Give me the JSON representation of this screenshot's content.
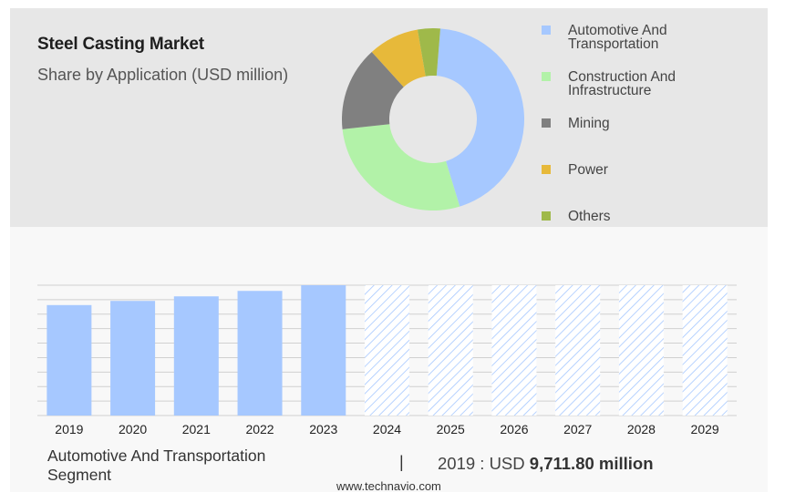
{
  "chart_data": [
    {
      "type": "pie",
      "title": "Steel Casting Market",
      "subtitle": "Share by Application (USD million)",
      "donut": true,
      "slices": [
        {
          "label": "Automotive And\nTransportation",
          "value": 44,
          "color": "#a6c8ff"
        },
        {
          "label": "Construction And\nInfrastructure",
          "value": 28,
          "color": "#b2f2a8"
        },
        {
          "label": "Mining",
          "value": 15,
          "color": "#808080"
        },
        {
          "label": "Power",
          "value": 9,
          "color": "#e7b93a"
        },
        {
          "label": "Others",
          "value": 4,
          "color": "#9fb94a"
        }
      ],
      "legend_position": "right"
    },
    {
      "type": "bar",
      "categories": [
        "2019",
        "2020",
        "2021",
        "2022",
        "2023",
        "2024",
        "2025",
        "2026",
        "2027",
        "2028",
        "2029"
      ],
      "values": [
        9711.8,
        10080,
        10480,
        10960,
        11460,
        null,
        null,
        null,
        null,
        null,
        null
      ],
      "forecast": [
        false,
        false,
        false,
        false,
        false,
        true,
        true,
        true,
        true,
        true,
        true
      ],
      "ylim": [
        0,
        11460
      ],
      "grid": true,
      "bar_color": "#a6c8ff",
      "forecast_pattern": "hatched"
    }
  ],
  "footer": {
    "segment_label": "Automotive And Transportation\nSegment",
    "divider": "|",
    "value_prefix": "2019 : USD ",
    "value_bold": "9,711.80 million",
    "source": "www.technavio.com"
  }
}
